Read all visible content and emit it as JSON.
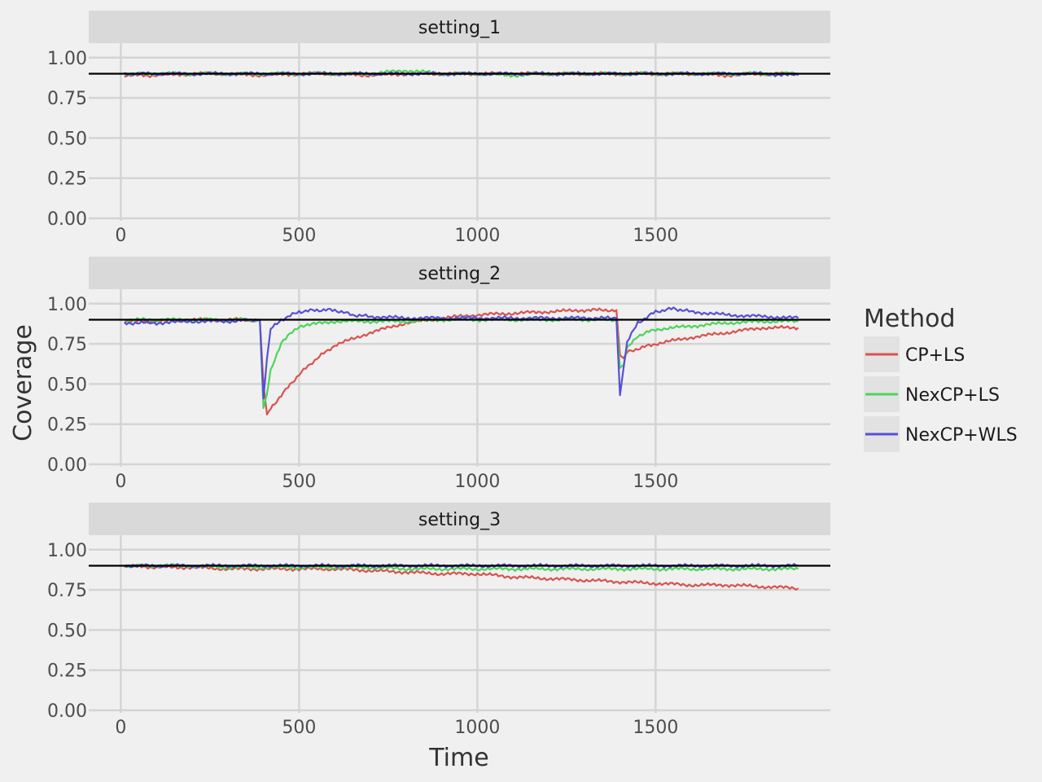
{
  "chart_data": {
    "type": "line",
    "facet_titles": [
      "setting_1",
      "setting_2",
      "setting_3"
    ],
    "xlabel": "Time",
    "ylabel": "Coverage",
    "x_ticks": [
      "0",
      "500",
      "1000",
      "1500"
    ],
    "y_ticks": [
      "0.00",
      "0.25",
      "0.50",
      "0.75",
      "1.00"
    ],
    "xlim": [
      -90,
      1990
    ],
    "ylim": [
      0,
      1.08
    ],
    "reference_line": 0.9,
    "grid": true,
    "legend": {
      "title": "Method",
      "position": "right",
      "entries": [
        "CP+LS",
        "NexCP+LS",
        "NexCP+WLS"
      ]
    },
    "colors": {
      "CP+LS": "#d9534f",
      "NexCP+LS": "#4dd45a",
      "NexCP+WLS": "#5650d6",
      "reference": "#000000",
      "panel_bg": "#f0f0f0",
      "strip_bg": "#d9d9d9",
      "grid": "#d4d4d4"
    },
    "panels": [
      {
        "title": "setting_1",
        "series": [
          {
            "name": "CP+LS",
            "x": [
              10,
              100,
              200,
              300,
              400,
              500,
              600,
              700,
              800,
              900,
              1000,
              1100,
              1200,
              1300,
              1400,
              1500,
              1600,
              1700,
              1800,
              1900
            ],
            "values": [
              0.89,
              0.89,
              0.9,
              0.9,
              0.89,
              0.9,
              0.9,
              0.89,
              0.9,
              0.9,
              0.9,
              0.9,
              0.9,
              0.9,
              0.9,
              0.9,
              0.9,
              0.89,
              0.9,
              0.9
            ]
          },
          {
            "name": "NexCP+LS",
            "x": [
              10,
              100,
              200,
              300,
              400,
              500,
              600,
              700,
              800,
              900,
              1000,
              1100,
              1200,
              1300,
              1400,
              1500,
              1600,
              1700,
              1800,
              1900
            ],
            "values": [
              0.9,
              0.9,
              0.9,
              0.9,
              0.9,
              0.9,
              0.9,
              0.9,
              0.92,
              0.9,
              0.9,
              0.89,
              0.9,
              0.9,
              0.9,
              0.9,
              0.9,
              0.9,
              0.9,
              0.9
            ]
          },
          {
            "name": "NexCP+WLS",
            "x": [
              10,
              100,
              200,
              300,
              400,
              500,
              600,
              700,
              800,
              900,
              1000,
              1100,
              1200,
              1300,
              1400,
              1500,
              1600,
              1700,
              1800,
              1900
            ],
            "values": [
              0.9,
              0.9,
              0.9,
              0.9,
              0.9,
              0.9,
              0.9,
              0.9,
              0.9,
              0.9,
              0.9,
              0.9,
              0.9,
              0.9,
              0.9,
              0.9,
              0.9,
              0.9,
              0.9,
              0.89
            ]
          }
        ]
      },
      {
        "title": "setting_2",
        "series": [
          {
            "name": "CP+LS",
            "x": [
              10,
              100,
              200,
              300,
              390,
              400,
              410,
              420,
              450,
              500,
              550,
              600,
              700,
              800,
              900,
              1000,
              1100,
              1200,
              1300,
              1390,
              1400,
              1410,
              1420,
              1450,
              1500,
              1600,
              1700,
              1800,
              1900
            ],
            "values": [
              0.89,
              0.89,
              0.9,
              0.9,
              0.9,
              0.5,
              0.31,
              0.35,
              0.43,
              0.56,
              0.66,
              0.74,
              0.82,
              0.88,
              0.91,
              0.93,
              0.94,
              0.95,
              0.96,
              0.96,
              0.68,
              0.66,
              0.7,
              0.72,
              0.75,
              0.79,
              0.82,
              0.85,
              0.85
            ]
          },
          {
            "name": "NexCP+LS",
            "x": [
              10,
              100,
              200,
              300,
              390,
              400,
              410,
              420,
              450,
              500,
              600,
              700,
              800,
              900,
              1000,
              1100,
              1200,
              1300,
              1390,
              1400,
              1410,
              1420,
              1450,
              1500,
              1600,
              1700,
              1800,
              1900
            ],
            "values": [
              0.9,
              0.9,
              0.9,
              0.9,
              0.9,
              0.35,
              0.44,
              0.58,
              0.76,
              0.86,
              0.89,
              0.89,
              0.89,
              0.9,
              0.9,
              0.9,
              0.9,
              0.9,
              0.9,
              0.6,
              0.62,
              0.72,
              0.8,
              0.84,
              0.86,
              0.88,
              0.89,
              0.89
            ]
          },
          {
            "name": "NexCP+WLS",
            "x": [
              10,
              100,
              200,
              300,
              390,
              400,
              410,
              420,
              450,
              500,
              550,
              600,
              650,
              700,
              800,
              900,
              1000,
              1100,
              1200,
              1300,
              1390,
              1400,
              1410,
              1420,
              1450,
              1500,
              1550,
              1600,
              1700,
              1800,
              1900
            ],
            "values": [
              0.88,
              0.88,
              0.89,
              0.89,
              0.9,
              0.41,
              0.66,
              0.84,
              0.9,
              0.95,
              0.96,
              0.96,
              0.93,
              0.92,
              0.91,
              0.91,
              0.91,
              0.91,
              0.91,
              0.91,
              0.91,
              0.43,
              0.6,
              0.76,
              0.88,
              0.95,
              0.97,
              0.95,
              0.93,
              0.92,
              0.91
            ]
          }
        ]
      },
      {
        "title": "setting_3",
        "series": [
          {
            "name": "CP+LS",
            "x": [
              10,
              100,
              200,
              300,
              400,
              500,
              600,
              700,
              800,
              900,
              1000,
              1100,
              1200,
              1300,
              1400,
              1500,
              1600,
              1700,
              1800,
              1900
            ],
            "values": [
              0.9,
              0.89,
              0.89,
              0.88,
              0.88,
              0.88,
              0.88,
              0.87,
              0.86,
              0.85,
              0.85,
              0.83,
              0.82,
              0.81,
              0.8,
              0.79,
              0.78,
              0.78,
              0.77,
              0.76
            ]
          },
          {
            "name": "NexCP+LS",
            "x": [
              10,
              100,
              200,
              300,
              400,
              500,
              600,
              700,
              800,
              900,
              1000,
              1100,
              1200,
              1300,
              1400,
              1500,
              1600,
              1700,
              1800,
              1900
            ],
            "values": [
              0.9,
              0.9,
              0.9,
              0.89,
              0.89,
              0.89,
              0.89,
              0.89,
              0.88,
              0.88,
              0.88,
              0.88,
              0.88,
              0.88,
              0.88,
              0.88,
              0.88,
              0.88,
              0.88,
              0.88
            ]
          },
          {
            "name": "NexCP+WLS",
            "x": [
              10,
              100,
              200,
              300,
              400,
              500,
              600,
              700,
              800,
              900,
              1000,
              1100,
              1200,
              1300,
              1400,
              1500,
              1600,
              1700,
              1800,
              1900
            ],
            "values": [
              0.9,
              0.9,
              0.9,
              0.9,
              0.9,
              0.9,
              0.9,
              0.9,
              0.9,
              0.9,
              0.9,
              0.9,
              0.9,
              0.9,
              0.9,
              0.9,
              0.9,
              0.9,
              0.9,
              0.9
            ]
          }
        ]
      }
    ]
  }
}
